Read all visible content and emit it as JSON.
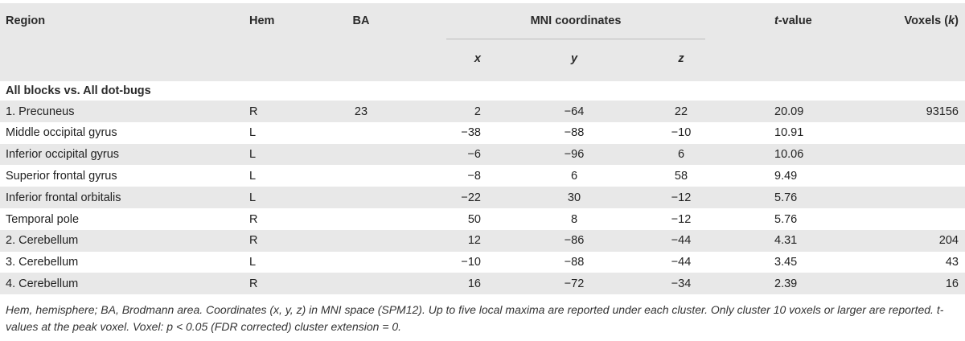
{
  "table": {
    "headers": {
      "region": "Region",
      "hem": "Hem",
      "ba": "BA",
      "mni": "MNI coordinates",
      "x": "x",
      "y": "y",
      "z": "z",
      "t_value_prefix": "t",
      "t_value_suffix": "-value",
      "voxels_prefix": "Voxels (",
      "voxels_k": "k",
      "voxels_suffix": ")"
    },
    "section_title": "All blocks vs. All dot-bugs",
    "rows": [
      {
        "region": "1. Precuneus",
        "hem": "R",
        "ba": "23",
        "x": "2",
        "y": "−64",
        "z": "22",
        "t": "20.09",
        "voxels": "93156"
      },
      {
        "region": "Middle occipital gyrus",
        "hem": "L",
        "ba": "",
        "x": "−38",
        "y": "−88",
        "z": "−10",
        "t": "10.91",
        "voxels": ""
      },
      {
        "region": "Inferior occipital gyrus",
        "hem": "L",
        "ba": "",
        "x": "−6",
        "y": "−96",
        "z": "6",
        "t": "10.06",
        "voxels": ""
      },
      {
        "region": "Superior frontal gyrus",
        "hem": "L",
        "ba": "",
        "x": "−8",
        "y": "6",
        "z": "58",
        "t": "9.49",
        "voxels": ""
      },
      {
        "region": "Inferior frontal orbitalis",
        "hem": "L",
        "ba": "",
        "x": "−22",
        "y": "30",
        "z": "−12",
        "t": "5.76",
        "voxels": ""
      },
      {
        "region": "Temporal pole",
        "hem": "R",
        "ba": "",
        "x": "50",
        "y": "8",
        "z": "−12",
        "t": "5.76",
        "voxels": ""
      },
      {
        "region": "2. Cerebellum",
        "hem": "R",
        "ba": "",
        "x": "12",
        "y": "−86",
        "z": "−44",
        "t": "4.31",
        "voxels": "204"
      },
      {
        "region": "3. Cerebellum",
        "hem": "L",
        "ba": "",
        "x": "−10",
        "y": "−88",
        "z": "−44",
        "t": "3.45",
        "voxels": "43"
      },
      {
        "region": "4. Cerebellum",
        "hem": "R",
        "ba": "",
        "x": "16",
        "y": "−72",
        "z": "−34",
        "t": "2.39",
        "voxels": "16"
      }
    ],
    "footnote": "Hem, hemisphere; BA, Brodmann area. Coordinates (x, y, z) in MNI space (SPM12). Up to five local maxima are reported under each cluster. Only cluster 10 voxels or larger are reported. t-values at the peak voxel. Voxel: p < 0.05 (FDR corrected) cluster extension = 0."
  }
}
